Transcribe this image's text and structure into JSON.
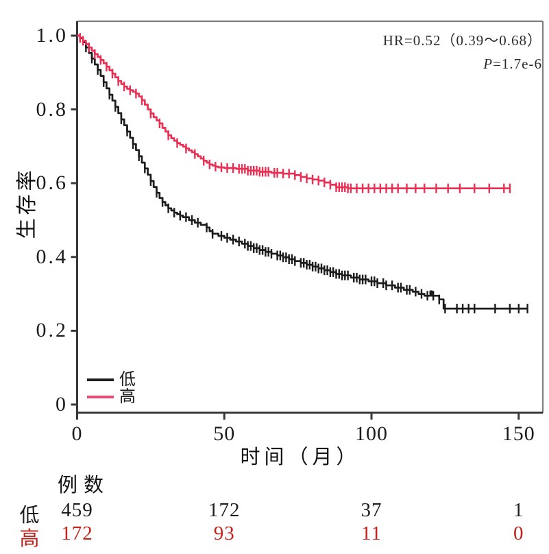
{
  "chart_data": {
    "type": "line",
    "subtype": "kaplan-meier-step",
    "title": "",
    "xlabel": "时间（月）",
    "ylabel": "生存率",
    "xlim": [
      0,
      158
    ],
    "ylim": [
      0,
      1.0
    ],
    "xticks": [
      0,
      50,
      100,
      150
    ],
    "xticklabels": [
      "0",
      "50",
      "100",
      "150"
    ],
    "yticks": [
      0,
      0.2,
      0.4,
      0.6,
      0.8,
      1.0
    ],
    "yticklabels": [
      "0",
      "0.2",
      "0.4",
      "0.6",
      "0.8",
      "1.0"
    ],
    "grid": false,
    "legend_position": "bottom-left",
    "annotations": {
      "hr_text": "HR=0.52（0.39～0.68）",
      "p_prefix": "P",
      "p_suffix": "=1.7e-6"
    },
    "series": [
      {
        "name": "低",
        "color": "#1c1c1c",
        "step": [
          [
            0,
            1.0
          ],
          [
            1,
            0.993
          ],
          [
            2,
            0.982
          ],
          [
            3,
            0.968
          ],
          [
            4,
            0.953
          ],
          [
            5,
            0.938
          ],
          [
            6,
            0.922
          ],
          [
            7,
            0.907
          ],
          [
            8,
            0.891
          ],
          [
            9,
            0.874
          ],
          [
            10,
            0.857
          ],
          [
            11,
            0.84
          ],
          [
            12,
            0.824
          ],
          [
            13,
            0.807
          ],
          [
            14,
            0.79
          ],
          [
            15,
            0.773
          ],
          [
            16,
            0.757
          ],
          [
            17,
            0.74
          ],
          [
            18,
            0.723
          ],
          [
            19,
            0.706
          ],
          [
            20,
            0.69
          ],
          [
            21,
            0.673
          ],
          [
            22,
            0.656
          ],
          [
            23,
            0.64
          ],
          [
            24,
            0.623
          ],
          [
            25,
            0.606
          ],
          [
            26,
            0.59
          ],
          [
            27,
            0.574
          ],
          [
            28,
            0.56
          ],
          [
            29,
            0.549
          ],
          [
            30,
            0.54
          ],
          [
            31,
            0.532
          ],
          [
            32,
            0.526
          ],
          [
            33,
            0.52
          ],
          [
            34,
            0.516
          ],
          [
            35,
            0.512
          ],
          [
            36,
            0.508
          ],
          [
            38,
            0.5
          ],
          [
            40,
            0.493
          ],
          [
            42,
            0.487
          ],
          [
            44,
            0.48
          ],
          [
            45,
            0.47
          ],
          [
            46,
            0.463
          ],
          [
            48,
            0.457
          ],
          [
            50,
            0.452
          ],
          [
            52,
            0.447
          ],
          [
            54,
            0.442
          ],
          [
            56,
            0.436
          ],
          [
            58,
            0.43
          ],
          [
            60,
            0.424
          ],
          [
            62,
            0.419
          ],
          [
            64,
            0.414
          ],
          [
            66,
            0.409
          ],
          [
            68,
            0.404
          ],
          [
            70,
            0.399
          ],
          [
            72,
            0.394
          ],
          [
            74,
            0.389
          ],
          [
            76,
            0.384
          ],
          [
            78,
            0.379
          ],
          [
            80,
            0.374
          ],
          [
            82,
            0.369
          ],
          [
            84,
            0.364
          ],
          [
            86,
            0.359
          ],
          [
            88,
            0.354
          ],
          [
            90,
            0.35
          ],
          [
            93,
            0.344
          ],
          [
            96,
            0.339
          ],
          [
            99,
            0.334
          ],
          [
            102,
            0.329
          ],
          [
            105,
            0.323
          ],
          [
            108,
            0.317
          ],
          [
            111,
            0.311
          ],
          [
            114,
            0.306
          ],
          [
            116,
            0.3
          ],
          [
            118,
            0.295
          ],
          [
            120,
            0.307
          ],
          [
            120.5,
            0.295
          ],
          [
            123,
            0.285
          ],
          [
            124.5,
            0.26
          ],
          [
            153,
            0.26
          ]
        ],
        "censor_times": [
          3,
          5,
          7,
          9,
          11,
          13,
          15,
          17,
          19,
          21,
          23,
          25,
          27,
          29,
          31,
          33,
          35,
          37,
          39,
          41,
          44,
          46,
          49,
          51,
          53,
          55,
          57,
          58,
          59,
          60,
          61,
          62,
          63,
          64,
          65,
          66,
          68,
          69,
          70,
          71,
          72,
          73,
          74,
          76,
          77,
          78,
          79,
          80,
          81,
          82,
          83,
          84,
          85,
          86,
          87,
          88,
          89,
          90,
          91,
          92,
          94,
          95,
          96,
          97,
          98,
          100,
          101,
          102,
          104,
          105,
          107,
          109,
          110,
          112,
          113,
          115,
          117,
          119,
          121,
          123,
          125,
          129,
          131,
          133,
          135,
          142,
          147,
          150,
          153
        ]
      },
      {
        "name": "高",
        "color": "#e93054",
        "step": [
          [
            0,
            1.0
          ],
          [
            1,
            0.994
          ],
          [
            2,
            0.986
          ],
          [
            3,
            0.977
          ],
          [
            4,
            0.968
          ],
          [
            5,
            0.959
          ],
          [
            6,
            0.95
          ],
          [
            7,
            0.942
          ],
          [
            8,
            0.934
          ],
          [
            9,
            0.925
          ],
          [
            10,
            0.916
          ],
          [
            11,
            0.906
          ],
          [
            12,
            0.897
          ],
          [
            13,
            0.887
          ],
          [
            14,
            0.877
          ],
          [
            15,
            0.869
          ],
          [
            16,
            0.862
          ],
          [
            17,
            0.856
          ],
          [
            18,
            0.852
          ],
          [
            19,
            0.848
          ],
          [
            20,
            0.843
          ],
          [
            21,
            0.835
          ],
          [
            22,
            0.825
          ],
          [
            23,
            0.813
          ],
          [
            24,
            0.8
          ],
          [
            25,
            0.789
          ],
          [
            26,
            0.779
          ],
          [
            27,
            0.77
          ],
          [
            28,
            0.762
          ],
          [
            29,
            0.75
          ],
          [
            30,
            0.74
          ],
          [
            31,
            0.73
          ],
          [
            32,
            0.722
          ],
          [
            33,
            0.715
          ],
          [
            34,
            0.709
          ],
          [
            35,
            0.704
          ],
          [
            36,
            0.699
          ],
          [
            37,
            0.694
          ],
          [
            38,
            0.689
          ],
          [
            39,
            0.684
          ],
          [
            40,
            0.679
          ],
          [
            41,
            0.673
          ],
          [
            42,
            0.667
          ],
          [
            43,
            0.661
          ],
          [
            44,
            0.656
          ],
          [
            45,
            0.651
          ],
          [
            46,
            0.648
          ],
          [
            47,
            0.645
          ],
          [
            48,
            0.643
          ],
          [
            50,
            0.641
          ],
          [
            54,
            0.639
          ],
          [
            58,
            0.634
          ],
          [
            62,
            0.631
          ],
          [
            66,
            0.628
          ],
          [
            70,
            0.626
          ],
          [
            74,
            0.622
          ],
          [
            76,
            0.617
          ],
          [
            78,
            0.613
          ],
          [
            80,
            0.61
          ],
          [
            82,
            0.607
          ],
          [
            84,
            0.602
          ],
          [
            86,
            0.596
          ],
          [
            88,
            0.589
          ],
          [
            92,
            0.586
          ],
          [
            147,
            0.586
          ]
        ],
        "censor_times": [
          1,
          2,
          4,
          6,
          8,
          10,
          12,
          14,
          16,
          18,
          20,
          22,
          25,
          28,
          31,
          34,
          37,
          40,
          43,
          45,
          47,
          49,
          51,
          53,
          55,
          56,
          57,
          58,
          59,
          60,
          61,
          62,
          63,
          64,
          65,
          67,
          68,
          70,
          72,
          74,
          76,
          78,
          80,
          82,
          84,
          86,
          88,
          89,
          90,
          91,
          92,
          93,
          95,
          97,
          99,
          101,
          103,
          105,
          107,
          109,
          112,
          115,
          118,
          122,
          126,
          130,
          135,
          140,
          145,
          147
        ]
      }
    ]
  },
  "legend": {
    "entries": [
      {
        "label": "低",
        "color": "#1c1c1c"
      },
      {
        "label": "高",
        "color": "#ef4a72"
      }
    ]
  },
  "risk_table": {
    "title": "例数",
    "times": [
      0,
      50,
      100,
      150
    ],
    "rows": [
      {
        "label": "低",
        "color": "#1c1c1c",
        "values": [
          "459",
          "172",
          "37",
          "1"
        ]
      },
      {
        "label": "高",
        "color": "#c2221a",
        "values": [
          "172",
          "93",
          "11",
          "0"
        ]
      }
    ]
  }
}
